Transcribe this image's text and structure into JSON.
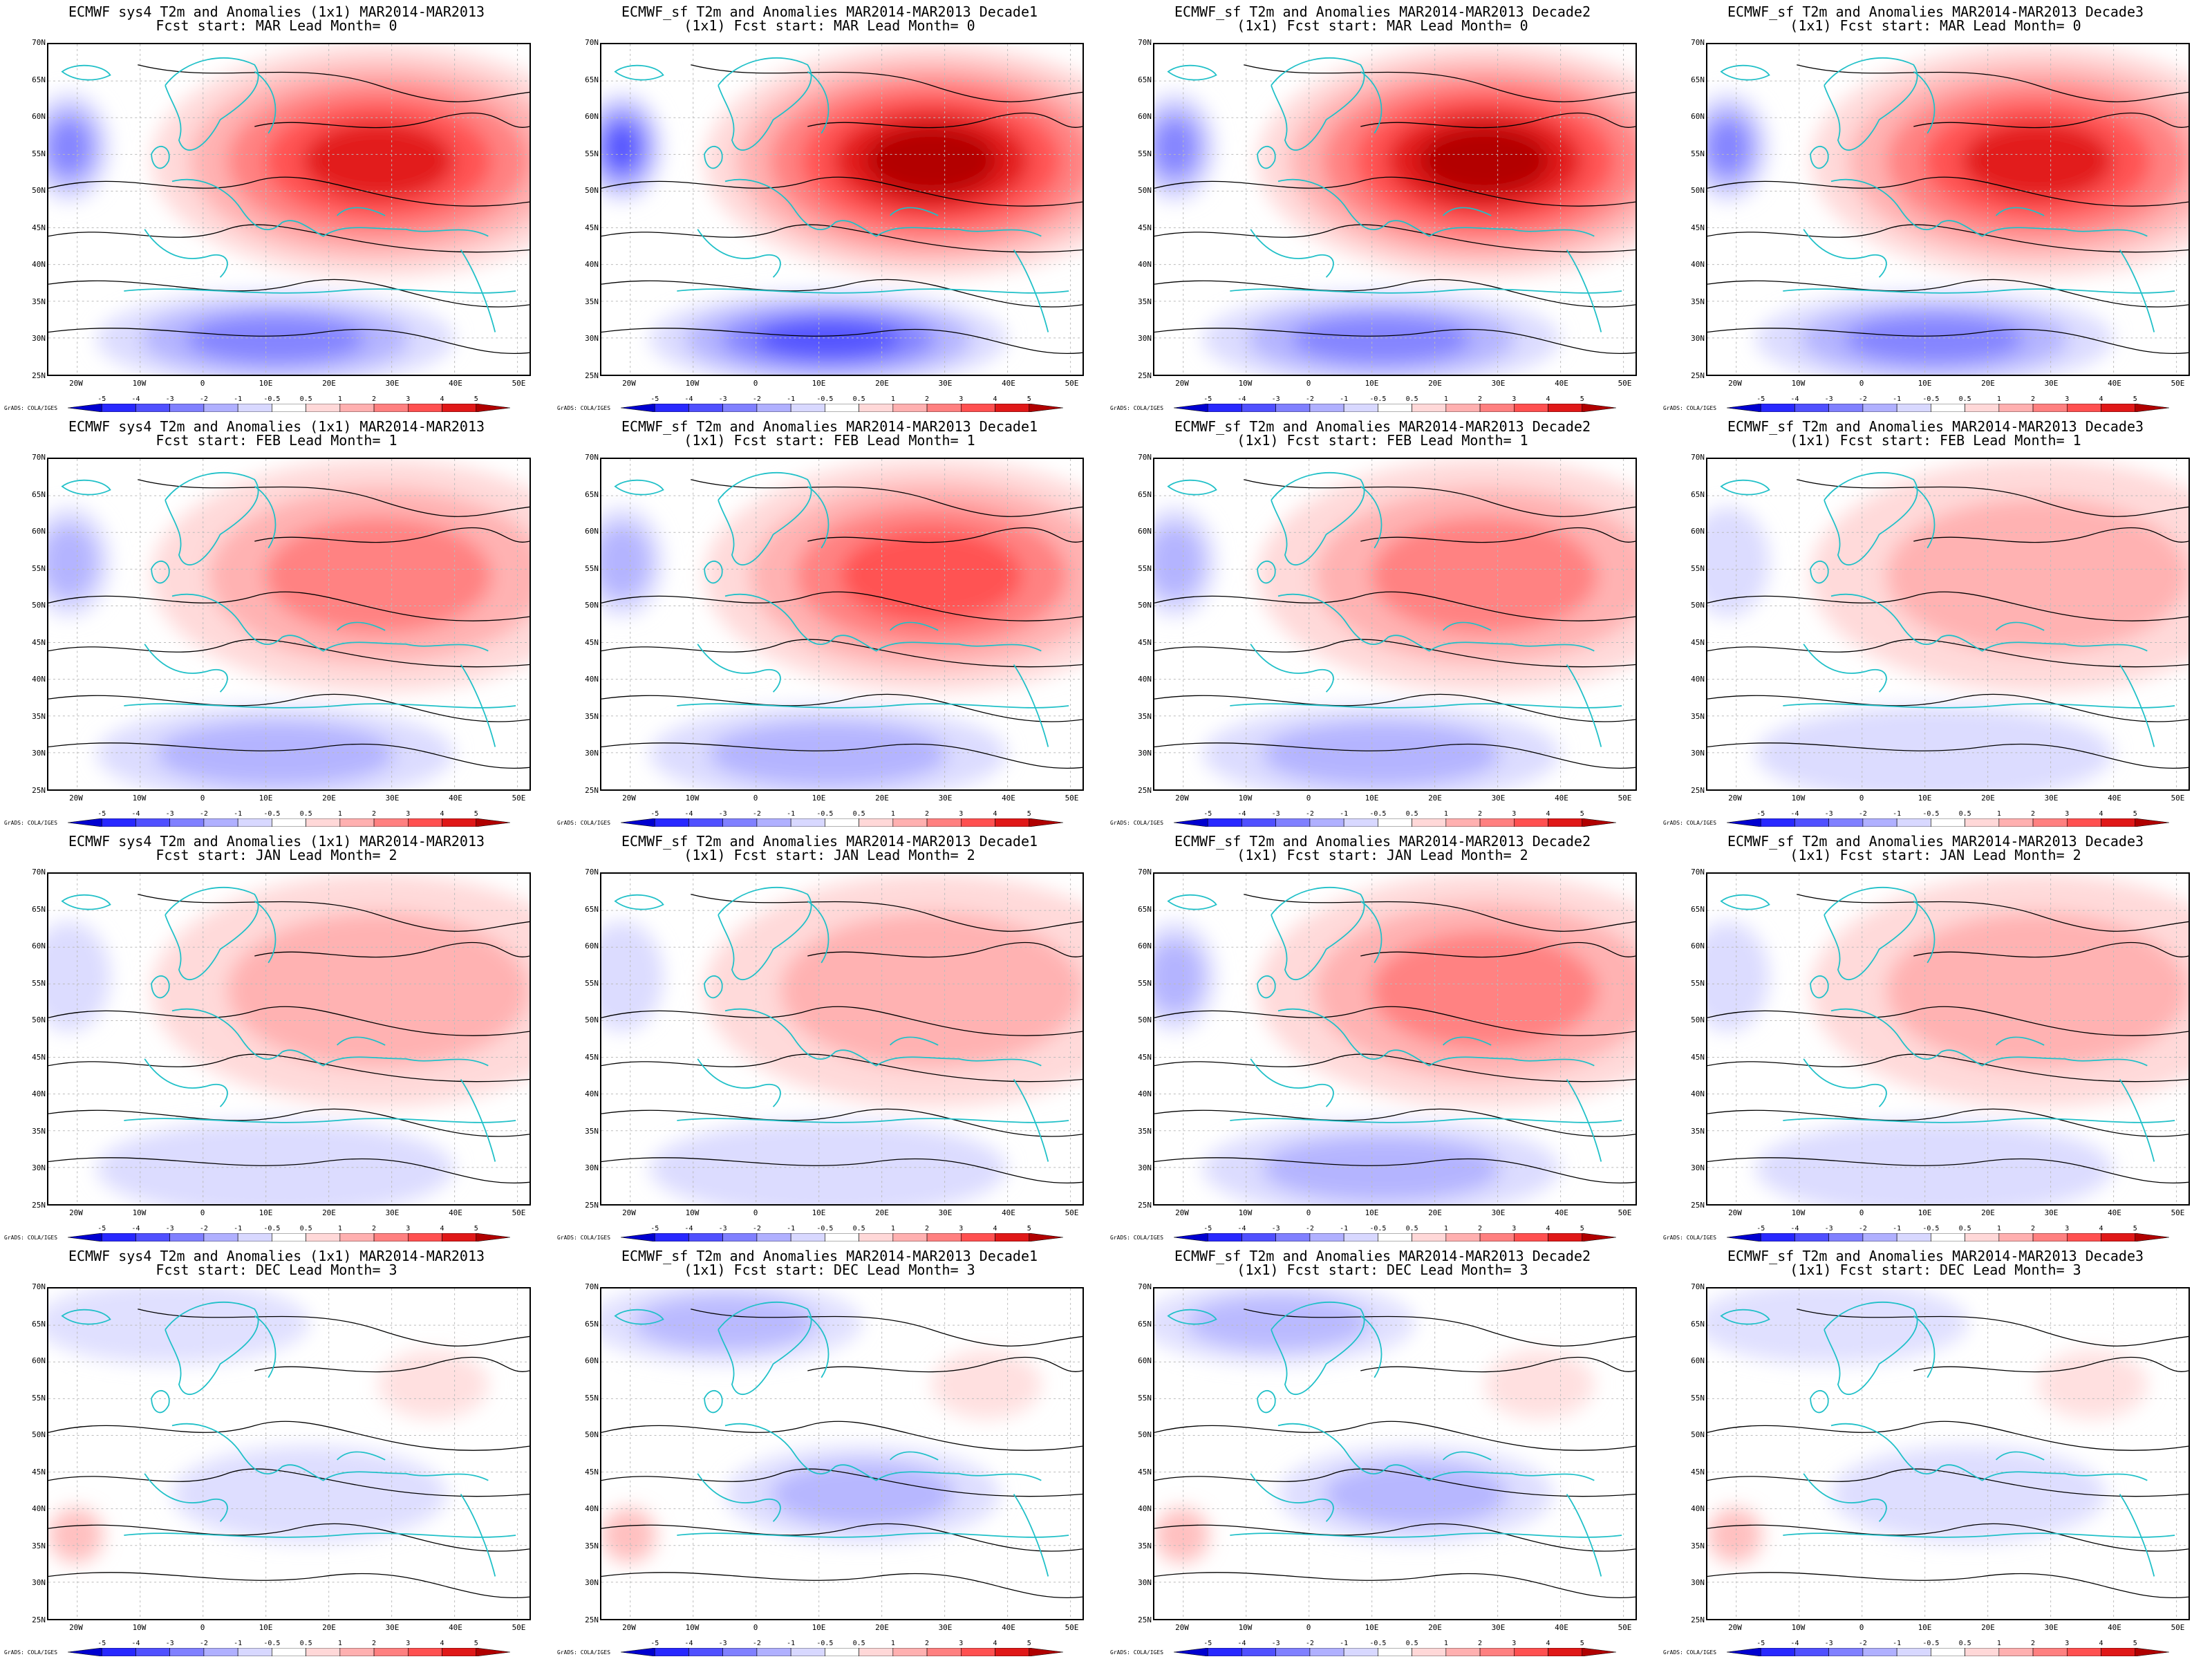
{
  "figure": {
    "lat_labels": [
      "70N",
      "65N",
      "60N",
      "55N",
      "50N",
      "45N",
      "40N",
      "35N",
      "30N",
      "25N"
    ],
    "lon_labels": [
      "20W",
      "10W",
      "0",
      "10E",
      "20E",
      "30E",
      "40E",
      "50E"
    ],
    "colorbar_labels": [
      "-5",
      "-4",
      "-3",
      "-2",
      "-1",
      "-0.5",
      "0.5",
      "1",
      "2",
      "3",
      "4",
      "5"
    ],
    "colorbar_colors": [
      "#0000d0",
      "#2828ff",
      "#5050ff",
      "#8080ff",
      "#b0b0ff",
      "#d8d8ff",
      "#ffffff",
      "#ffd8d8",
      "#ffb0b0",
      "#ff8080",
      "#ff5050",
      "#e01818",
      "#b00000"
    ],
    "credit": "GrADS: COLA/IGES",
    "colors": {
      "coast": "#20c0c8",
      "contour": "#000000",
      "warm": "#e02020",
      "cold": "#3030ff"
    }
  },
  "panels": [
    {
      "title1": "ECMWF sys4 T2m and Anomalies (1x1) MAR2014-MAR2013",
      "title2": "Fcst start: MAR  Lead Month= 0",
      "intensity": 1.0,
      "sign": 1
    },
    {
      "title1": "ECMWF_sf T2m and Anomalies MAR2014-MAR2013 Decade1",
      "title2": "(1x1) Fcst start: MAR  Lead Month= 0",
      "intensity": 1.25,
      "sign": 1
    },
    {
      "title1": "ECMWF_sf T2m and Anomalies MAR2014-MAR2013 Decade2",
      "title2": "(1x1) Fcst start: MAR  Lead Month= 0",
      "intensity": 1.1,
      "sign": 1
    },
    {
      "title1": "ECMWF_sf T2m and Anomalies MAR2014-MAR2013 Decade3",
      "title2": "(1x1) Fcst start: MAR  Lead Month= 0",
      "intensity": 0.9,
      "sign": 1
    },
    {
      "title1": "ECMWF sys4 T2m and Anomalies (1x1) MAR2014-MAR2013",
      "title2": "Fcst start: FEB  Lead Month= 1",
      "intensity": 0.6,
      "sign": 1
    },
    {
      "title1": "ECMWF_sf T2m and Anomalies MAR2014-MAR2013 Decade1",
      "title2": "(1x1) Fcst start: FEB  Lead Month= 1",
      "intensity": 0.8,
      "sign": 1
    },
    {
      "title1": "ECMWF_sf T2m and Anomalies MAR2014-MAR2013 Decade2",
      "title2": "(1x1) Fcst start: FEB  Lead Month= 1",
      "intensity": 0.6,
      "sign": 1
    },
    {
      "title1": "ECMWF_sf T2m and Anomalies MAR2014-MAR2013 Decade3",
      "title2": "(1x1) Fcst start: FEB  Lead Month= 1",
      "intensity": 0.35,
      "sign": 1
    },
    {
      "title1": "ECMWF sys4 T2m and Anomalies (1x1) MAR2014-MAR2013",
      "title2": "Fcst start: JAN  Lead Month= 2",
      "intensity": 0.45,
      "sign": 1
    },
    {
      "title1": "ECMWF_sf T2m and Anomalies MAR2014-MAR2013 Decade1",
      "title2": "(1x1) Fcst start: JAN  Lead Month= 2",
      "intensity": 0.45,
      "sign": 1
    },
    {
      "title1": "ECMWF_sf T2m and Anomalies MAR2014-MAR2013 Decade2",
      "title2": "(1x1) Fcst start: JAN  Lead Month= 2",
      "intensity": 0.55,
      "sign": 1
    },
    {
      "title1": "ECMWF_sf T2m and Anomalies MAR2014-MAR2013 Decade3",
      "title2": "(1x1) Fcst start: JAN  Lead Month= 2",
      "intensity": 0.4,
      "sign": 1
    },
    {
      "title1": "ECMWF sys4 T2m and Anomalies (1x1) MAR2014-MAR2013",
      "title2": "Fcst start: DEC  Lead Month= 3",
      "intensity": 0.25,
      "sign": -1
    },
    {
      "title1": "ECMWF_sf T2m and Anomalies MAR2014-MAR2013 Decade1",
      "title2": "(1x1) Fcst start: DEC  Lead Month= 3",
      "intensity": 0.3,
      "sign": -1
    },
    {
      "title1": "ECMWF_sf T2m and Anomalies MAR2014-MAR2013 Decade2",
      "title2": "(1x1) Fcst start: DEC  Lead Month= 3",
      "intensity": 0.35,
      "sign": -1
    },
    {
      "title1": "ECMWF_sf T2m and Anomalies MAR2014-MAR2013 Decade3",
      "title2": "(1x1) Fcst start: DEC  Lead Month= 3",
      "intensity": 0.25,
      "sign": -1
    }
  ]
}
